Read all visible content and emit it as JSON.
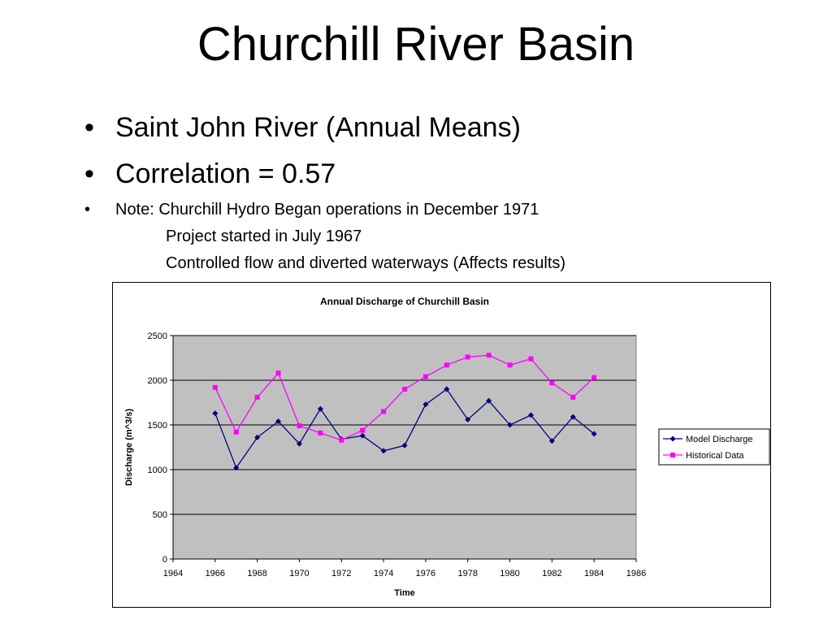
{
  "slide": {
    "title": "Churchill River Basin",
    "bullets": [
      "Saint John River (Annual Means)",
      "Correlation = 0.57",
      "Note: Churchill Hydro Began operations in December 1971"
    ],
    "sub_lines": [
      "Project started in July 1967",
      "Controlled flow and diverted waterways (Affects results)"
    ]
  },
  "chart_data": {
    "type": "line",
    "title": "Annual Discharge of Churchill Basin",
    "xlabel": "Time",
    "ylabel": "Discharge (m^3/s)",
    "xlim": [
      1964,
      1986
    ],
    "ylim": [
      0,
      2500
    ],
    "x_ticks": [
      "1964",
      "1966",
      "1968",
      "1970",
      "1972",
      "1974",
      "1976",
      "1978",
      "1980",
      "1982",
      "1984",
      "1986"
    ],
    "y_ticks": [
      "0",
      "500",
      "1000",
      "1500",
      "2000",
      "2500"
    ],
    "grid": "horizontal",
    "plot_background": "#c0c0c0",
    "legend_position": "right",
    "series": [
      {
        "name": "Model Discharge",
        "color": "#000080",
        "marker": "diamond",
        "x": [
          1966,
          1967,
          1968,
          1969,
          1970,
          1971,
          1972,
          1973,
          1974,
          1975,
          1976,
          1977,
          1978,
          1979,
          1980,
          1981,
          1982,
          1983,
          1984
        ],
        "y": [
          1630,
          1020,
          1360,
          1540,
          1290,
          1680,
          1340,
          1380,
          1210,
          1270,
          1730,
          1900,
          1560,
          1770,
          1500,
          1610,
          1320,
          1590,
          1400
        ]
      },
      {
        "name": "Historical Data",
        "color": "#ff00ff",
        "marker": "square",
        "x": [
          1966,
          1967,
          1968,
          1969,
          1970,
          1971,
          1972,
          1973,
          1974,
          1975,
          1976,
          1977,
          1978,
          1979,
          1980,
          1981,
          1982,
          1983,
          1984
        ],
        "y": [
          1920,
          1420,
          1810,
          2080,
          1490,
          1410,
          1330,
          1440,
          1650,
          1900,
          2040,
          2170,
          2260,
          2280,
          2170,
          2240,
          1970,
          1810,
          2030
        ]
      }
    ]
  }
}
